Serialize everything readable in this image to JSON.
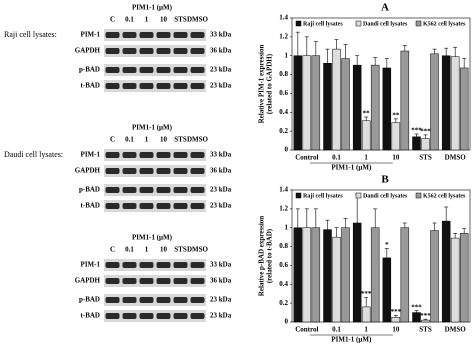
{
  "blots": [
    {
      "cell_line": "Raji cell lysates:",
      "treatment": "PIM1-1 (μM)",
      "lanes": [
        "C",
        "0.1",
        "1",
        "10",
        "STS",
        "DMSO"
      ],
      "proteins": [
        "PIM-1",
        "GAPDH",
        "p-BAD",
        "t-BAD"
      ],
      "sizes": [
        "33 kDa",
        "36 kDa",
        "23 kDa",
        "23 kDa"
      ]
    },
    {
      "cell_line": "Daudi cell lysates:",
      "treatment": "PIM1-1 (μM)",
      "lanes": [
        "C",
        "0.1",
        "1",
        "10",
        "STS",
        "DMSO"
      ],
      "proteins": [
        "PIM-1",
        "GAPDH",
        "p-BAD",
        "t-BAD"
      ],
      "sizes": [
        "33 kDa",
        "36 kDa",
        "23 kDa",
        "23 kDa"
      ]
    },
    {
      "treatment": "PIM1-1 (μM)",
      "lanes": [
        "C",
        "0.1",
        "1",
        "10",
        "STS",
        "DMSO"
      ],
      "proteins": [
        "PIM-1",
        "GAPDH",
        "p-BAD",
        "t-BAD"
      ],
      "sizes": [
        "33 kDa",
        "36 kDa",
        "23 kDa",
        "23 kDa"
      ]
    }
  ],
  "chart_data": [
    {
      "type": "bar",
      "title": "A",
      "ylabel": [
        "Relative PIM-1 expression",
        "(related to GAPDH)"
      ],
      "xlabel": "PIM1-1 (μM)",
      "categories": [
        "Control",
        "0.1",
        "1",
        "10",
        "STS",
        "DMSO"
      ],
      "series": [
        {
          "name": "Raji cell lysates",
          "color": "#111111",
          "values": [
            1.0,
            0.92,
            0.9,
            0.87,
            0.14,
            1.0
          ],
          "errors": [
            0.25,
            0.15,
            0.1,
            0.1,
            0.03,
            0.08
          ]
        },
        {
          "name": "Dandi cell lysates",
          "color": "#dddddd",
          "values": [
            1.0,
            1.07,
            0.31,
            0.29,
            0.12,
            0.99
          ],
          "errors": [
            0.2,
            0.1,
            0.04,
            0.04,
            0.04,
            0.1
          ]
        },
        {
          "name": "K562 cell lysates",
          "color": "#999999",
          "values": [
            1.0,
            0.97,
            0.9,
            1.05,
            1.02,
            0.87
          ],
          "errors": [
            0.15,
            0.15,
            0.08,
            0.06,
            0.05,
            0.1
          ]
        }
      ],
      "annotations": [
        {
          "text": "**",
          "series": 1,
          "category": 2
        },
        {
          "text": "**",
          "series": 1,
          "category": 3
        },
        {
          "text": "***",
          "series": 0,
          "category": 4
        },
        {
          "text": "***",
          "series": 1,
          "category": 4
        }
      ],
      "ylim": [
        0,
        1.4
      ],
      "yticks": [
        0,
        0.2,
        0.4,
        0.6,
        0.8,
        1,
        1.2,
        1.4
      ]
    },
    {
      "type": "bar",
      "title": "B",
      "ylabel": [
        "Relative p-BAD expression",
        "(related to t-BAD)"
      ],
      "xlabel": "PIM1-1 (μM)",
      "categories": [
        "Control",
        "0.1",
        "1",
        "10",
        "STS",
        "DMSO"
      ],
      "series": [
        {
          "name": "Raji cell lysates",
          "color": "#111111",
          "values": [
            1.0,
            0.98,
            1.05,
            0.68,
            0.1,
            1.07
          ],
          "errors": [
            0.2,
            0.1,
            0.3,
            0.1,
            0.02,
            0.15
          ]
        },
        {
          "name": "Dandi cell lysates",
          "color": "#dddddd",
          "values": [
            1.0,
            0.9,
            0.16,
            0.05,
            0.02,
            0.89
          ],
          "errors": [
            0.2,
            0.1,
            0.1,
            0.02,
            0.01,
            0.05
          ]
        },
        {
          "name": "K562 cell lysates",
          "color": "#999999",
          "values": [
            1.0,
            1.0,
            1.0,
            1.0,
            0.97,
            0.94
          ],
          "errors": [
            0.2,
            0.1,
            0.2,
            0.05,
            0.08,
            0.05
          ]
        }
      ],
      "annotations": [
        {
          "text": "***",
          "series": 1,
          "category": 2
        },
        {
          "text": "*",
          "series": 0,
          "category": 3
        },
        {
          "text": "***",
          "series": 1,
          "category": 3
        },
        {
          "text": "***",
          "series": 0,
          "category": 4
        },
        {
          "text": "***",
          "series": 1,
          "category": 4
        }
      ],
      "ylim": [
        0,
        1.4
      ],
      "yticks": [
        0,
        0.2,
        0.4,
        0.6,
        0.8,
        1,
        1.2,
        1.4
      ]
    }
  ]
}
